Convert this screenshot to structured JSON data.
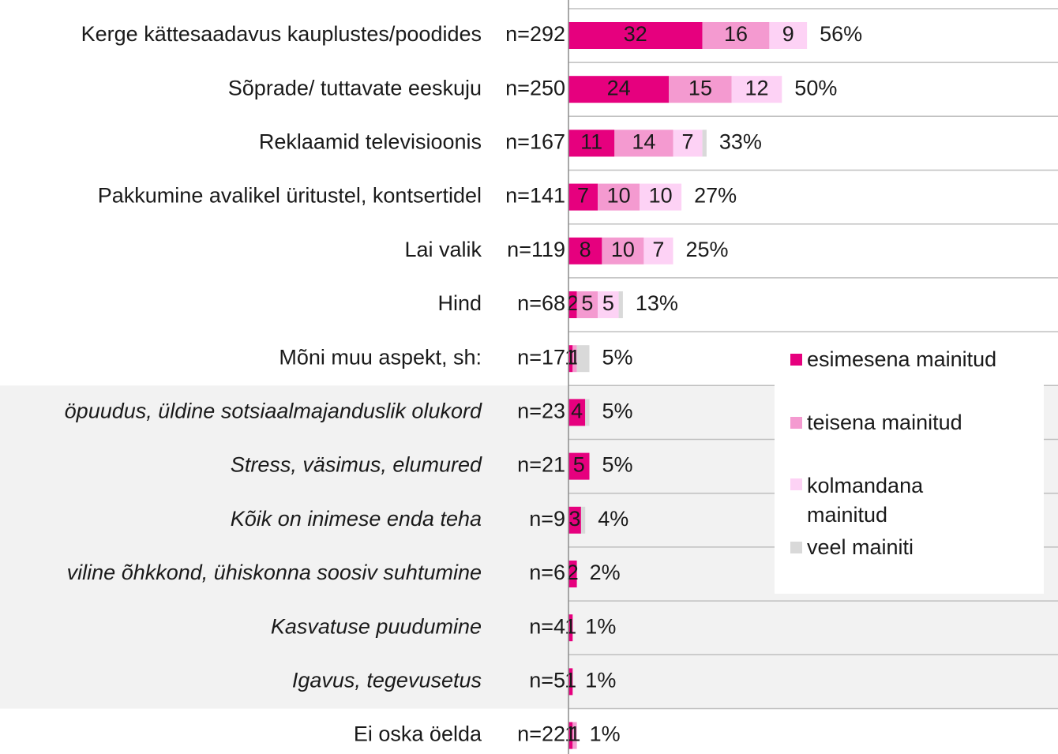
{
  "chart_data": {
    "type": "stacked-bar-horizontal",
    "categories": [
      "Kerge kättesaadavus kauplustes/poodides",
      "Sõprade/ tuttavate eeskuju",
      "Reklaamid televisioonis",
      "Pakkumine avalikel üritustel, kontsertidel",
      "Lai valik",
      "Hind",
      "Mõni muu aspekt, sh:",
      "öpuudus, üldine sotsiaalmajanduslik olukord",
      "Stress, väsimus, elumured",
      "Kõik on inimese enda teha",
      "viline õhkkond, ühiskonna soosiv suhtumine",
      "Kasvatuse puudumine",
      "Igavus, tegevusetus",
      "Ei oska öelda"
    ],
    "n_labels": [
      "n=292",
      "n=250",
      "n=167",
      "n=141",
      "n=119",
      "n=68",
      "n=17",
      "n=23",
      "n=21",
      "n=9",
      "n=6",
      "n=4",
      "n=5",
      "n=22"
    ],
    "italic": [
      false,
      false,
      false,
      false,
      false,
      false,
      false,
      true,
      true,
      true,
      true,
      true,
      true,
      false
    ],
    "series": [
      {
        "name": "esimesena mainitud",
        "color": "#e6007e",
        "values": [
          32,
          24,
          11,
          7,
          8,
          2,
          1,
          4,
          5,
          3,
          2,
          1,
          1,
          1
        ]
      },
      {
        "name": "teisena mainitud",
        "color": "#f49ad0",
        "values": [
          16,
          15,
          14,
          10,
          10,
          5,
          1,
          null,
          null,
          null,
          null,
          null,
          null,
          1
        ]
      },
      {
        "name": "kolmandana mainitud",
        "color": "#fdd2f5",
        "values": [
          9,
          12,
          7,
          10,
          7,
          5,
          null,
          null,
          null,
          null,
          null,
          null,
          null,
          null
        ]
      },
      {
        "name": "veel mainiti",
        "color": "#d9d9d9",
        "values": [
          null,
          null,
          1,
          null,
          null,
          1,
          3,
          1,
          null,
          1,
          null,
          null,
          null,
          null
        ]
      }
    ],
    "totals": [
      56,
      50,
      33,
      27,
      25,
      13,
      5,
      5,
      5,
      4,
      2,
      1,
      1,
      1
    ],
    "total_labels": [
      "56%",
      "50%",
      "33%",
      "27%",
      "25%",
      "13%",
      "5%",
      "5%",
      "5%",
      "4%",
      "2%",
      "1%",
      "1%",
      "1%"
    ]
  }
}
